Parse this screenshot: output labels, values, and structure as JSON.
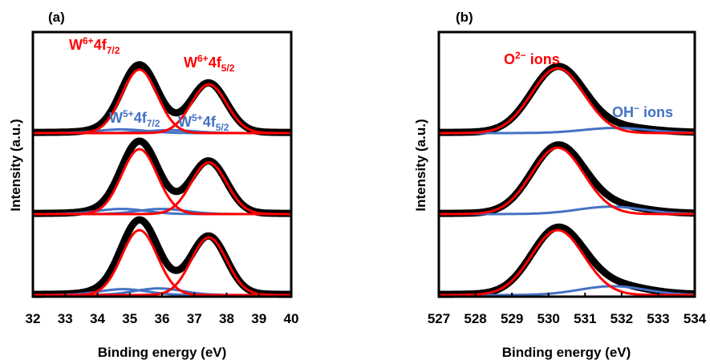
{
  "chart_data": [
    {
      "type": "line",
      "panel_label": "(a)",
      "xlabel": "Binding energy (eV)",
      "ylabel": "Intensity (a.u.)",
      "xlim": [
        32,
        40
      ],
      "x_ticks": [
        "32",
        "33",
        "34",
        "35",
        "36",
        "37",
        "38",
        "39",
        "40"
      ],
      "annotations": {
        "w6_72": {
          "base": "W",
          "sup": "6+",
          "mid": "4f",
          "sub": "7/2",
          "color": "#ff0000"
        },
        "w6_52": {
          "base": "W",
          "sup": "6+",
          "mid": "4f",
          "sub": "5/2",
          "color": "#ff0000"
        },
        "w5_72": {
          "base": "W",
          "sup": "5+",
          "mid": "4f",
          "sub": "7/2",
          "color": "#4472c4"
        },
        "w5_52": {
          "base": "W",
          "sup": "5+",
          "mid": "4f",
          "sub": "5/2",
          "color": "#4472c4"
        }
      },
      "stacks": [
        {
          "components": [
            {
              "center": 35.3,
              "amp": 0.86,
              "width": 0.55,
              "color": "#ff0000"
            },
            {
              "center": 37.45,
              "amp": 0.66,
              "width": 0.55,
              "color": "#ff0000"
            },
            {
              "center": 34.75,
              "amp": 0.05,
              "width": 0.75,
              "color": "#4472c4"
            },
            {
              "center": 36.25,
              "amp": 0.04,
              "width": 0.75,
              "color": "#4472c4"
            }
          ]
        },
        {
          "components": [
            {
              "center": 35.3,
              "amp": 0.88,
              "width": 0.55,
              "color": "#ff0000"
            },
            {
              "center": 37.45,
              "amp": 0.7,
              "width": 0.55,
              "color": "#ff0000"
            },
            {
              "center": 34.75,
              "amp": 0.07,
              "width": 0.75,
              "color": "#4472c4"
            },
            {
              "center": 36.0,
              "amp": 0.07,
              "width": 0.75,
              "color": "#4472c4"
            }
          ]
        },
        {
          "components": [
            {
              "center": 35.3,
              "amp": 0.88,
              "width": 0.55,
              "color": "#ff0000"
            },
            {
              "center": 37.45,
              "amp": 0.78,
              "width": 0.55,
              "color": "#ff0000"
            },
            {
              "center": 34.8,
              "amp": 0.08,
              "width": 0.75,
              "color": "#4472c4"
            },
            {
              "center": 35.9,
              "amp": 0.09,
              "width": 0.75,
              "color": "#4472c4"
            }
          ]
        }
      ]
    },
    {
      "type": "line",
      "panel_label": "(b)",
      "xlabel": "Binding energy (eV)",
      "ylabel": "Intensity (a.u.)",
      "xlim": [
        527,
        534
      ],
      "x_ticks": [
        "527",
        "528",
        "529",
        "530",
        "531",
        "532",
        "533",
        "534"
      ],
      "annotations": {
        "o2": {
          "base": "O",
          "sup": "2−",
          "rest": " ions",
          "color": "#ff0000"
        },
        "oh": {
          "base": "OH",
          "sup": "−",
          "rest": " ions",
          "color": "#4472c4"
        }
      },
      "stacks": [
        {
          "components": [
            {
              "center": 530.25,
              "amp": 0.88,
              "width": 0.72,
              "color": "#ff0000"
            },
            {
              "center": 531.85,
              "amp": 0.07,
              "width": 0.9,
              "color": "#4472c4"
            }
          ]
        },
        {
          "components": [
            {
              "center": 530.25,
              "amp": 0.9,
              "width": 0.72,
              "color": "#ff0000"
            },
            {
              "center": 531.7,
              "amp": 0.1,
              "width": 0.9,
              "color": "#4472c4"
            }
          ]
        },
        {
          "components": [
            {
              "center": 530.25,
              "amp": 0.88,
              "width": 0.72,
              "color": "#ff0000"
            },
            {
              "center": 531.75,
              "amp": 0.12,
              "width": 0.9,
              "color": "#4472c4"
            }
          ]
        }
      ]
    }
  ]
}
